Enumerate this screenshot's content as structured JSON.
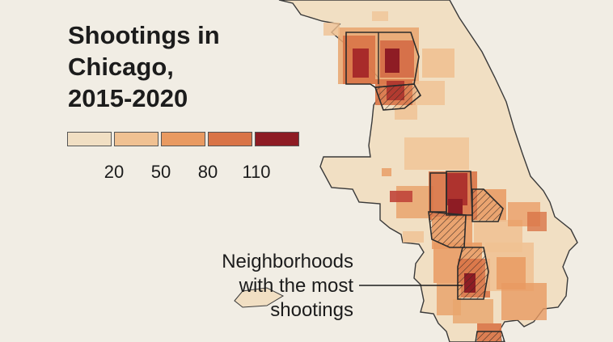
{
  "title_lines": [
    "Shootings in",
    "Chicago,",
    "2015-2020"
  ],
  "legend": {
    "colors": [
      "#f1dfc3",
      "#f0c192",
      "#e99a61",
      "#d97447",
      "#8e1c24"
    ],
    "ticks": [
      "20",
      "50",
      "80",
      "110"
    ]
  },
  "annotation_lines": [
    "Neighborhoods",
    "with the most",
    "shootings"
  ],
  "colors": {
    "background": "#f1ede4",
    "land": "#f1dfc3",
    "outline": "#2b2b2b"
  }
}
